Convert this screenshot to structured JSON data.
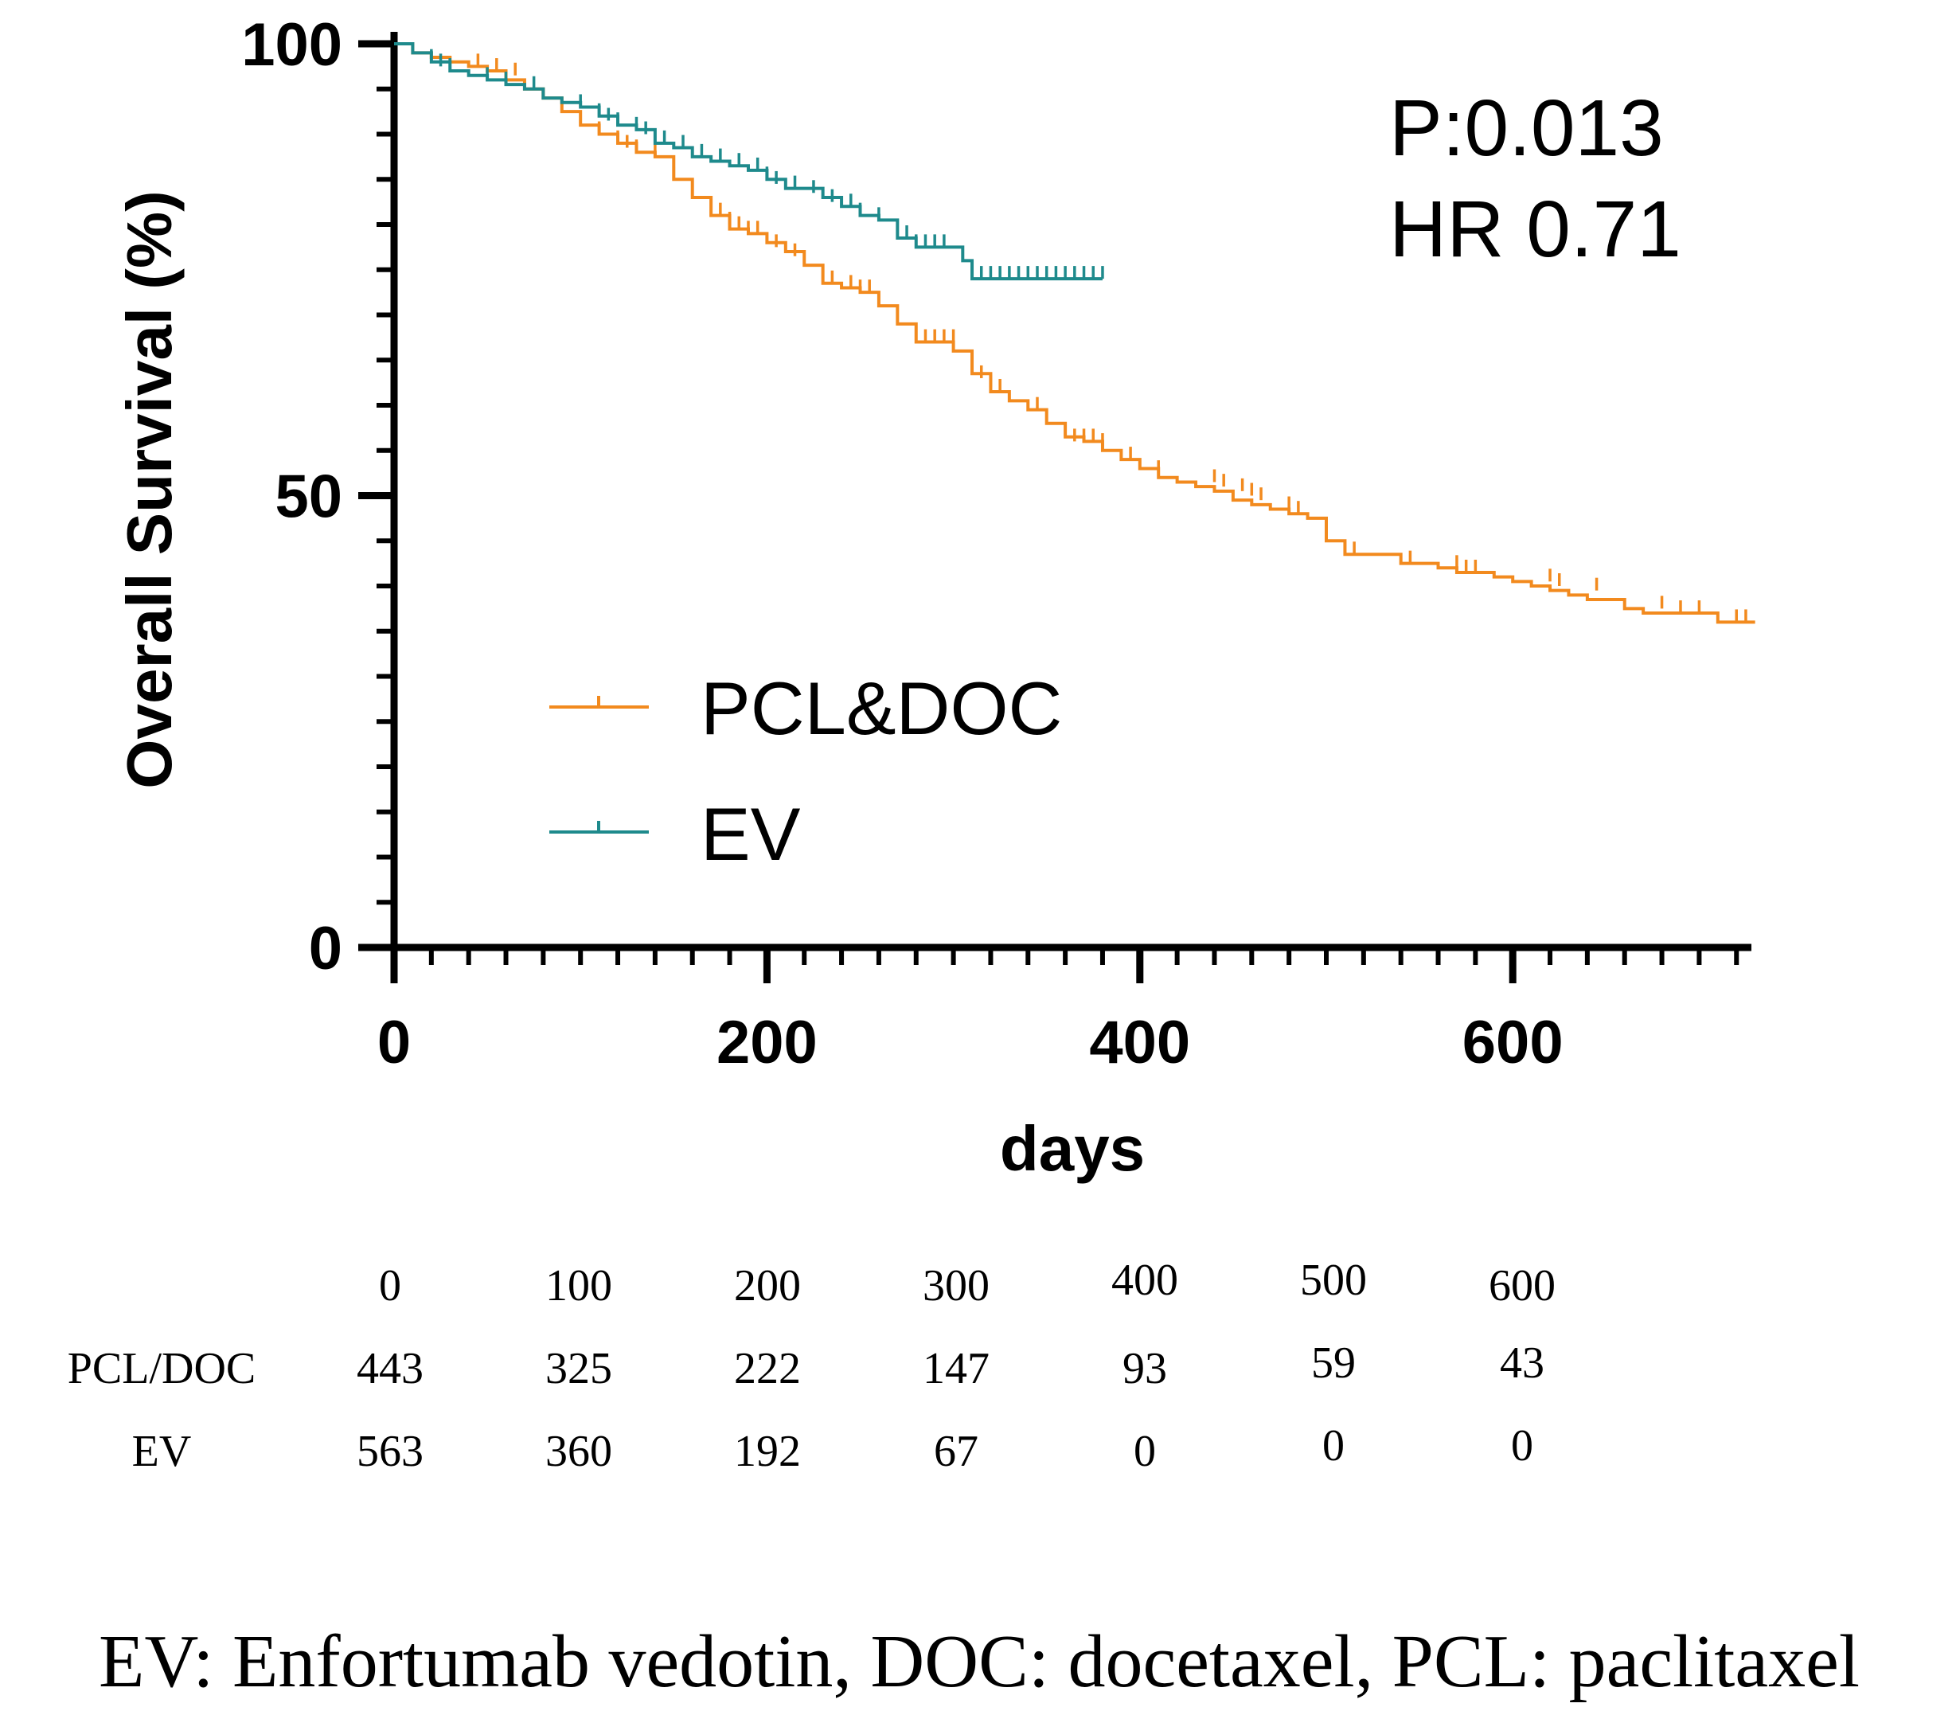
{
  "chart_data": {
    "type": "line",
    "subtype": "kaplan-meier",
    "xlabel": "days",
    "ylabel": "Overall Survival (%)",
    "xlim": [
      0,
      730
    ],
    "ylim": [
      0,
      100
    ],
    "x_ticks": [
      0,
      200,
      400,
      600
    ],
    "y_ticks": [
      0,
      50,
      100
    ],
    "x_minor_step": 20,
    "y_minor_step": 5,
    "annotations": [
      "P:0.013",
      "HR 0.71"
    ],
    "colors": {
      "PCL&DOC": "#F28A1E",
      "EV": "#1E8A8C"
    },
    "series": [
      {
        "name": "PCL&DOC",
        "x": [
          0,
          10,
          20,
          30,
          40,
          50,
          60,
          70,
          80,
          90,
          100,
          110,
          120,
          130,
          140,
          150,
          160,
          170,
          180,
          190,
          200,
          210,
          220,
          230,
          240,
          250,
          260,
          270,
          280,
          290,
          300,
          310,
          320,
          330,
          340,
          350,
          360,
          370,
          380,
          390,
          400,
          410,
          420,
          430,
          440,
          450,
          460,
          470,
          480,
          490,
          500,
          510,
          520,
          530,
          540,
          550,
          560,
          570,
          580,
          590,
          600,
          610,
          620,
          630,
          640,
          650,
          660,
          670,
          680,
          690,
          700,
          710,
          720,
          730
        ],
        "y": [
          100,
          99,
          98.5,
          98,
          97.5,
          97,
          96,
          95,
          94,
          92.5,
          91,
          90,
          89,
          88,
          87.5,
          85,
          83,
          81,
          79.5,
          79,
          78,
          77,
          75.5,
          73.5,
          73,
          72.5,
          71,
          69,
          67,
          67,
          66,
          63.5,
          61.5,
          60.5,
          59.5,
          58,
          56.5,
          56,
          55,
          54,
          53,
          52,
          51.5,
          51,
          50.5,
          49.5,
          49,
          48.5,
          48,
          47.5,
          45,
          43.5,
          43.5,
          43.5,
          42.5,
          42.5,
          42,
          41.5,
          41.5,
          41,
          40.5,
          40,
          39.5,
          39,
          38.5,
          38.5,
          37.5,
          37,
          37,
          37,
          37,
          36,
          36,
          36
        ],
        "censor_x": [
          45,
          55,
          65,
          110,
          120,
          125,
          130,
          140,
          150,
          175,
          180,
          185,
          190,
          195,
          205,
          215,
          230,
          235,
          245,
          250,
          255,
          285,
          290,
          295,
          300,
          310,
          315,
          320,
          325,
          345,
          360,
          365,
          370,
          375,
          380,
          395,
          410,
          440,
          445,
          455,
          460,
          465,
          480,
          485,
          510,
          515,
          545,
          570,
          575,
          580,
          620,
          625,
          645,
          680,
          690,
          700,
          720,
          725
        ],
        "censor_y": [
          97.5,
          97,
          96.5,
          90,
          89,
          88.5,
          88,
          87.5,
          85,
          81,
          80,
          79.5,
          79,
          79,
          77.5,
          76.5,
          74,
          73.5,
          73,
          72.5,
          72.5,
          67,
          67,
          67,
          67,
          64,
          63,
          62,
          61.5,
          59.5,
          56.5,
          56,
          56,
          56,
          55.5,
          54,
          52.5,
          51.5,
          51,
          50.5,
          50,
          49.5,
          48.5,
          48,
          43.5,
          43.5,
          42.5,
          42,
          41.5,
          41.5,
          40.5,
          40,
          39.5,
          37.5,
          37,
          37,
          36,
          36
        ]
      },
      {
        "name": "EV",
        "x": [
          0,
          10,
          20,
          30,
          40,
          50,
          60,
          70,
          80,
          90,
          100,
          110,
          120,
          130,
          140,
          150,
          160,
          170,
          180,
          190,
          200,
          210,
          220,
          230,
          240,
          250,
          260,
          270,
          280,
          290,
          300,
          305,
          310,
          320,
          330,
          340,
          350,
          360,
          370,
          380
        ],
        "y": [
          100,
          99,
          98,
          97,
          96.5,
          96,
          95.5,
          95,
          94,
          93.5,
          93,
          92,
          91,
          90.5,
          89,
          88.5,
          87.5,
          87,
          86.5,
          86,
          85,
          84,
          84,
          83,
          82,
          81,
          80.5,
          78.5,
          77.5,
          77.5,
          77.5,
          76,
          74,
          74,
          74,
          74,
          74,
          74,
          74,
          74
        ],
        "censor_x": [
          20,
          25,
          30,
          50,
          60,
          75,
          100,
          110,
          115,
          120,
          130,
          135,
          145,
          155,
          165,
          175,
          185,
          195,
          200,
          205,
          215,
          225,
          235,
          245,
          250,
          260,
          275,
          280,
          285,
          290,
          295,
          310,
          315,
          320,
          325,
          330,
          335,
          340,
          345,
          350,
          355,
          360,
          365,
          370,
          375,
          380
        ],
        "censor_y": [
          98,
          97.5,
          97,
          96,
          95.5,
          95,
          93,
          92,
          91.5,
          91,
          90.5,
          90,
          89,
          88.5,
          87.5,
          87,
          86.5,
          86,
          85,
          84.5,
          84,
          83.5,
          82.5,
          82,
          81,
          80.5,
          78.5,
          77.5,
          77.5,
          77.5,
          77.5,
          74,
          74,
          74,
          74,
          74,
          74,
          74,
          74,
          74,
          74,
          74,
          74,
          74,
          74,
          74
        ]
      }
    ],
    "legend": [
      "PCL&DOC",
      "EV"
    ]
  },
  "risk_table": {
    "times": [
      "0",
      "100",
      "200",
      "300",
      "400",
      "500",
      "600"
    ],
    "rows": [
      {
        "label": "PCL/DOC",
        "values": [
          "443",
          "325",
          "222",
          "147",
          "93",
          "59",
          "43"
        ]
      },
      {
        "label": "EV",
        "values": [
          "563",
          "360",
          "192",
          "67",
          "0",
          "0",
          "0"
        ]
      }
    ]
  },
  "caption": "EV: Enfortumab vedotin, DOC: docetaxel, PCL: paclitaxel"
}
